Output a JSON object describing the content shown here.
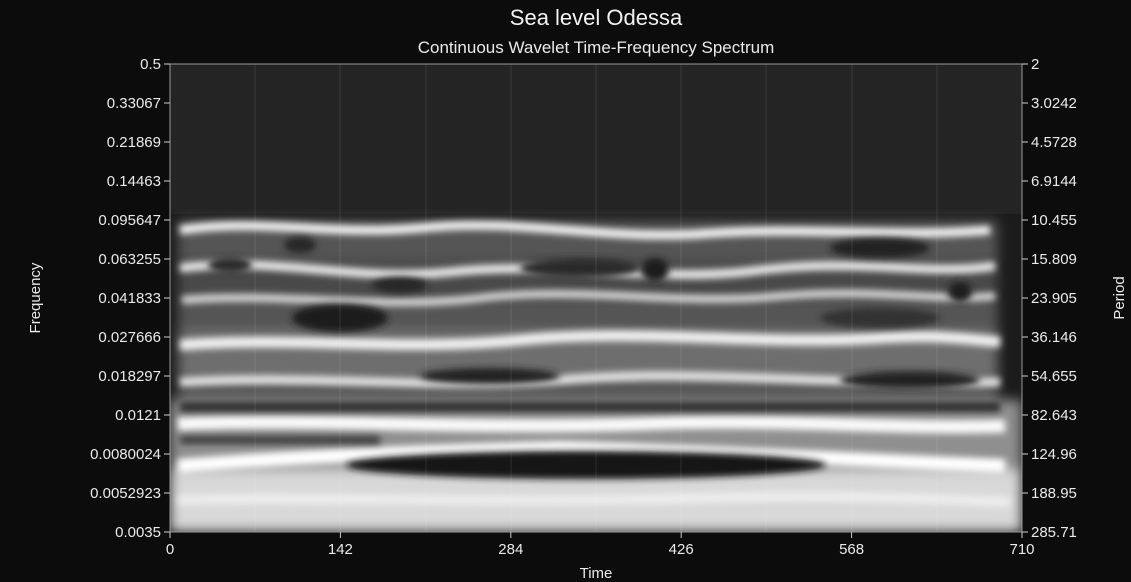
{
  "chart_data": {
    "type": "heatmap",
    "title": "Sea level Odessa",
    "subtitle": "Continuous Wavelet Time-Frequency Spectrum",
    "xlabel": "Time",
    "ylabel": "Frequency",
    "y2label": "Period",
    "xlim": [
      0,
      710
    ],
    "ylim": [
      0.0035,
      0.5
    ],
    "yscale": "log",
    "x_ticks": [
      "0",
      "142",
      "284",
      "426",
      "568",
      "710"
    ],
    "y_ticks": [
      "0.5",
      "0.33067",
      "0.21869",
      "0.14463",
      "0.095647",
      "0.063255",
      "0.041833",
      "0.027666",
      "0.018297",
      "0.0121",
      "0.0080024",
      "0.0052923",
      "0.0035"
    ],
    "y2_ticks": [
      "2",
      "3.0242",
      "4.5728",
      "6.9144",
      "10.455",
      "15.809",
      "23.905",
      "36.146",
      "54.655",
      "82.643",
      "124.96",
      "188.95",
      "285.71"
    ],
    "colormap": "grayscale",
    "colors": {
      "background": "#0c0c0c",
      "low": "#1a1a1a",
      "high": "#ffffff"
    }
  }
}
